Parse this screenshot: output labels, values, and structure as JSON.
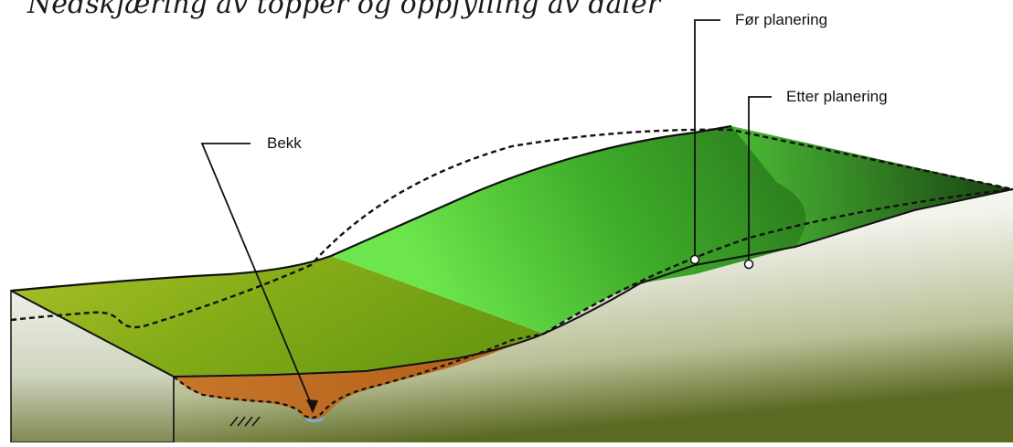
{
  "title": "Nedskjæring av topper og oppfylling av daler",
  "labels": {
    "before": "Før planering",
    "after": "Etter planering",
    "stream": "Bekk"
  },
  "colors": {
    "upper_green_light": "#5fe34a",
    "upper_green_dark": "#1f5a16",
    "lower_green": "#8bb21a",
    "fill_brown": "#bd6a1f",
    "water": "#6fb3dc",
    "outline": "#111111"
  }
}
